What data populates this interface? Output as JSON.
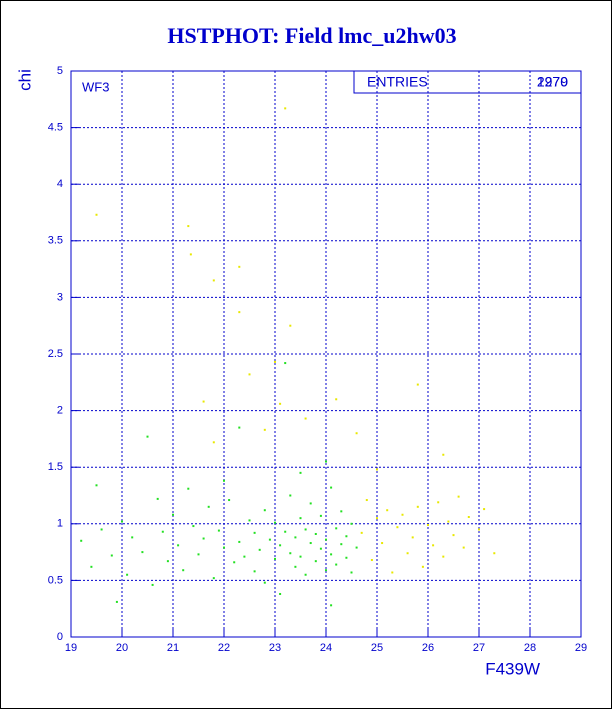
{
  "chart_data": {
    "type": "scatter",
    "title": "HSTPHOT: Field lmc_u2hw03",
    "x_label": "F439W",
    "y_label": "chi",
    "annotation": "WF3",
    "stats_label": "ENTRIES",
    "entries": [
      2279,
      1970
    ],
    "xlim": [
      19,
      29
    ],
    "xticks": [
      19,
      20,
      21,
      22,
      23,
      24,
      25,
      26,
      27,
      28,
      29
    ],
    "ylim": [
      0,
      5
    ],
    "yticks": [
      0,
      0.5,
      1,
      1.5,
      2,
      2.5,
      3,
      3.5,
      4,
      4.5,
      5
    ],
    "grid": true,
    "series": [
      {
        "color": "#22e022",
        "x": [
          19.2,
          19.4,
          19.5,
          19.6,
          19.8,
          19.9,
          20.0,
          20.1,
          20.2,
          20.4,
          20.5,
          20.6,
          20.7,
          20.8,
          20.9,
          21.0,
          21.1,
          21.2,
          21.3,
          21.4,
          21.5,
          21.6,
          21.7,
          21.8,
          21.9,
          22.0,
          22.1,
          22.2,
          22.3,
          22.3,
          22.4,
          22.5,
          22.6,
          22.6,
          22.7,
          22.8,
          22.8,
          22.9,
          23.0,
          23.0,
          23.1,
          23.1,
          23.2,
          23.2,
          23.3,
          23.3,
          23.4,
          23.4,
          23.5,
          23.5,
          23.6,
          23.6,
          23.7,
          23.7,
          23.8,
          23.8,
          23.9,
          23.9,
          24.0,
          24.0,
          24.1,
          24.1,
          24.2,
          24.2,
          24.3,
          24.3,
          24.4,
          24.4,
          24.5,
          24.5,
          24.6,
          24.1,
          23.5,
          22.0,
          24.0
        ],
        "values": [
          0.85,
          0.62,
          1.34,
          0.95,
          0.72,
          0.31,
          1.02,
          0.55,
          0.88,
          0.75,
          1.77,
          0.46,
          1.22,
          0.93,
          0.67,
          1.08,
          0.81,
          0.59,
          1.31,
          0.98,
          0.73,
          0.87,
          1.15,
          0.52,
          0.94,
          0.79,
          1.21,
          0.66,
          1.85,
          0.84,
          0.71,
          1.03,
          0.58,
          0.92,
          0.77,
          1.12,
          0.48,
          0.86,
          0.69,
          1.01,
          0.81,
          0.38,
          2.42,
          0.93,
          0.74,
          1.25,
          0.62,
          0.88,
          1.05,
          0.71,
          0.95,
          0.55,
          0.83,
          1.18,
          0.67,
          0.91,
          0.78,
          1.07,
          0.59,
          0.86,
          1.32,
          0.73,
          0.96,
          0.64,
          0.82,
          1.11,
          0.7,
          0.89,
          0.57,
          1.0,
          0.79,
          0.28,
          1.45,
          1.38,
          1.55
        ]
      },
      {
        "color": "#e8e800",
        "x": [
          24.7,
          24.8,
          24.9,
          25.0,
          25.1,
          25.2,
          25.3,
          25.4,
          25.5,
          25.6,
          25.7,
          25.8,
          25.9,
          26.0,
          26.1,
          26.2,
          26.3,
          26.4,
          26.5,
          26.6,
          26.7,
          26.8,
          27.0,
          27.1,
          27.3,
          25.0,
          19.5,
          21.3,
          21.35,
          23.2,
          22.3,
          21.8,
          22.3,
          23.3,
          23.0,
          22.5,
          25.8,
          21.6,
          23.1,
          24.2,
          22.8,
          24.6,
          23.6,
          21.8,
          26.3
        ],
        "values": [
          0.92,
          1.21,
          0.68,
          1.05,
          0.83,
          1.12,
          0.57,
          0.97,
          1.08,
          0.74,
          0.88,
          1.15,
          0.62,
          0.99,
          0.81,
          1.19,
          0.71,
          1.02,
          0.9,
          1.24,
          0.79,
          1.06,
          0.95,
          1.13,
          0.74,
          1.48,
          3.73,
          3.63,
          3.38,
          4.67,
          3.27,
          3.15,
          2.87,
          2.75,
          2.43,
          2.32,
          2.23,
          2.08,
          2.06,
          2.1,
          1.83,
          1.8,
          1.93,
          1.72,
          1.61
        ]
      }
    ]
  }
}
